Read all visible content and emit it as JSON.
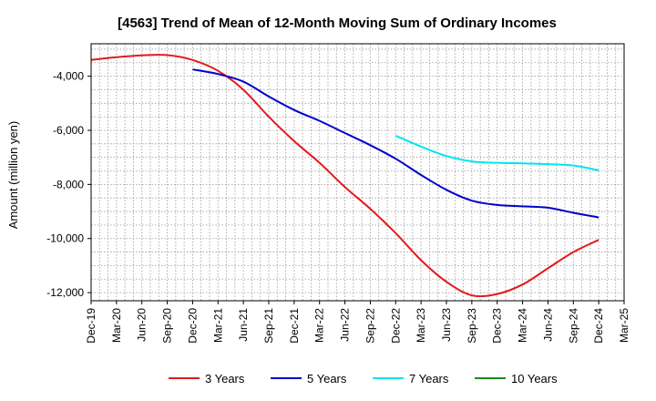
{
  "chart_data": {
    "type": "line",
    "title": "[4563]  Trend of Mean of 12-Month Moving Sum of Ordinary Incomes",
    "xlabel": "",
    "ylabel": "Amount (million yen)",
    "ylim": [
      -12300,
      -2800
    ],
    "yticks": [
      -4000,
      -6000,
      -8000,
      -10000,
      -12000
    ],
    "ytick_labels": [
      "-4,000",
      "-6,000",
      "-8,000",
      "-10,000",
      "-12,000"
    ],
    "x_tick_labels": [
      "Dec-19",
      "Mar-20",
      "Jun-20",
      "Sep-20",
      "Dec-20",
      "Mar-21",
      "Jun-21",
      "Sep-21",
      "Dec-21",
      "Mar-22",
      "Jun-22",
      "Sep-22",
      "Dec-22",
      "Mar-23",
      "Jun-23",
      "Sep-23",
      "Dec-23",
      "Mar-24",
      "Jun-24",
      "Sep-24",
      "Dec-24",
      "Mar-25"
    ],
    "grid": true,
    "legend_position": "bottom",
    "series": [
      {
        "name": "3 Years",
        "color": "#e31a1c",
        "start_index": 0,
        "values": [
          -3400,
          -3300,
          -3230,
          -3220,
          -3400,
          -3800,
          -4500,
          -5500,
          -6400,
          -7200,
          -8100,
          -8900,
          -9800,
          -10800,
          -11600,
          -12100,
          -12050,
          -11700,
          -11100,
          -10500,
          -10050
        ]
      },
      {
        "name": "5 Years",
        "color": "#0000cc",
        "start_index": 4,
        "values": [
          -3750,
          -3920,
          -4200,
          -4750,
          -5250,
          -5650,
          -6100,
          -6550,
          -7050,
          -7650,
          -8200,
          -8600,
          -8760,
          -8810,
          -8860,
          -9050,
          -9220
        ]
      },
      {
        "name": "7 Years",
        "color": "#00e5ee",
        "start_index": 12,
        "values": [
          -6200,
          -6600,
          -6950,
          -7150,
          -7200,
          -7220,
          -7250,
          -7300,
          -7480
        ]
      },
      {
        "name": "10 Years",
        "color": "#1a8c1a",
        "start_index": 0,
        "values": []
      }
    ]
  }
}
